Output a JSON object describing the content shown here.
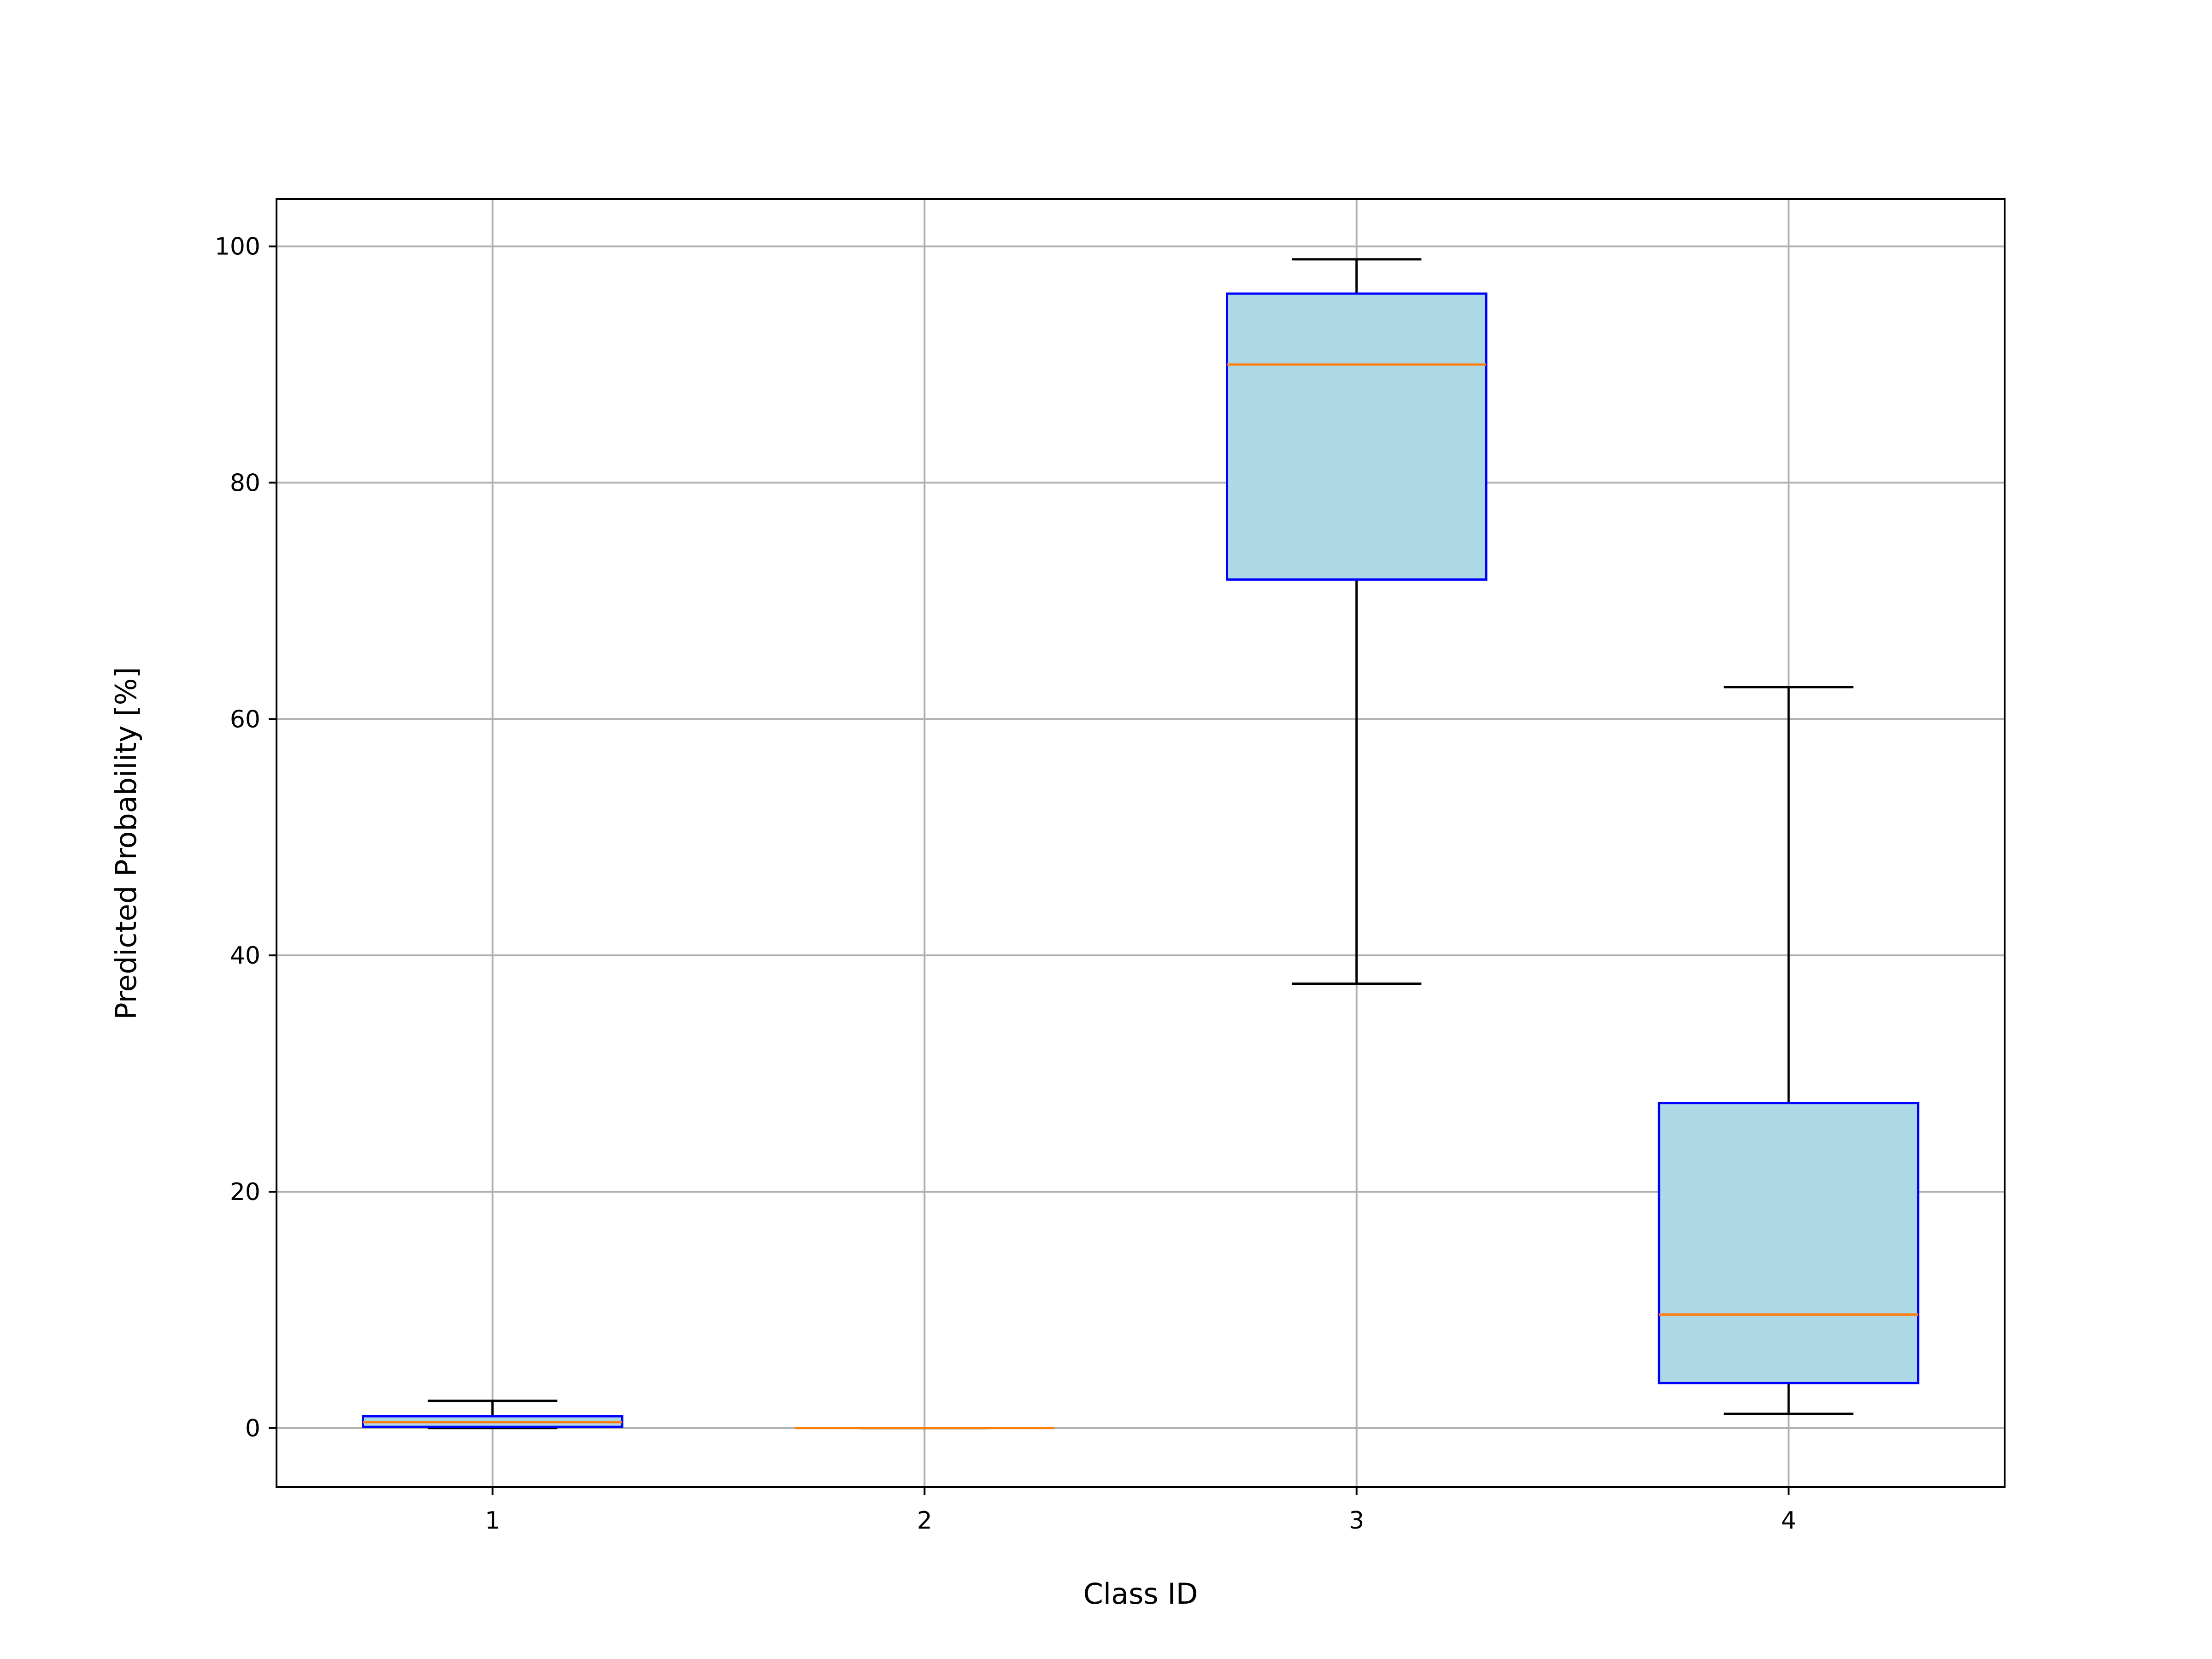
{
  "chart_data": {
    "type": "box",
    "title": "",
    "xlabel": "Class ID",
    "ylabel": "Predicted Probability [%]",
    "categories": [
      "1",
      "2",
      "3",
      "4"
    ],
    "xlim": [
      0.5,
      4.5
    ],
    "ylim": [
      -5,
      104
    ],
    "yticks": [
      0,
      20,
      40,
      60,
      80,
      100
    ],
    "ytick_labels": [
      "0",
      "20",
      "40",
      "60",
      "80",
      "100"
    ],
    "grid": true,
    "box_fill": "#add8e6",
    "box_edge": "#0000ff",
    "median_color": "#ff7f0e",
    "whisker_color": "#000000",
    "boxes": [
      {
        "category": "1",
        "whisker_low": 0.0,
        "q1": 0.1,
        "median": 0.5,
        "q3": 1.0,
        "whisker_high": 2.3
      },
      {
        "category": "2",
        "whisker_low": 0.0,
        "q1": 0.0,
        "median": 0.0,
        "q3": 0.0,
        "whisker_high": 0.0
      },
      {
        "category": "3",
        "whisker_low": 37.6,
        "q1": 71.8,
        "median": 90.0,
        "q3": 96.0,
        "whisker_high": 98.9
      },
      {
        "category": "4",
        "whisker_low": 1.2,
        "q1": 3.8,
        "median": 9.6,
        "q3": 27.5,
        "whisker_high": 62.7
      }
    ]
  }
}
